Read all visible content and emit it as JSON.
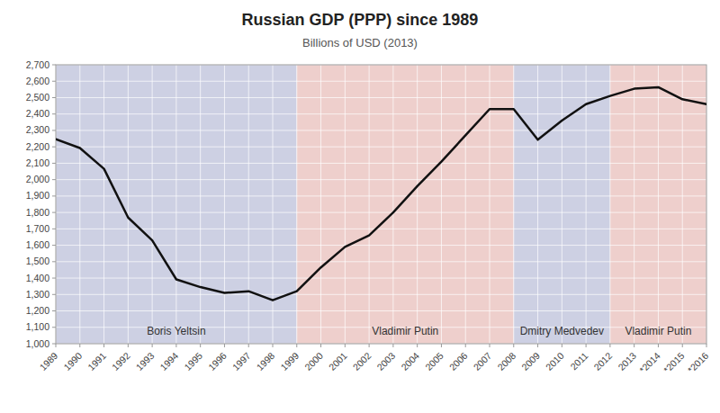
{
  "chart_data": {
    "type": "line",
    "title": "Russian GDP (PPP) since 1989",
    "subtitle": "Billions of USD (2013)",
    "x": [
      1989,
      1990,
      1991,
      1992,
      1993,
      1994,
      1995,
      1996,
      1997,
      1998,
      1999,
      2000,
      2001,
      2002,
      2003,
      2004,
      2005,
      2006,
      2007,
      2008,
      2009,
      2010,
      2011,
      2012,
      2013,
      2014,
      2015,
      2016
    ],
    "values": [
      2246,
      2193,
      2066,
      1769,
      1630,
      1392,
      1345,
      1310,
      1320,
      1265,
      1320,
      1465,
      1590,
      1660,
      1800,
      1960,
      2110,
      2270,
      2430,
      2430,
      2243,
      2360,
      2460,
      2510,
      2554,
      2563,
      2490,
      2460
    ],
    "color": "#111111",
    "xlim": [
      1989,
      2016
    ],
    "xticks": [
      1989,
      1990,
      1991,
      1992,
      1993,
      1994,
      1995,
      1996,
      1997,
      1998,
      1999,
      2000,
      2001,
      2002,
      2003,
      2004,
      2005,
      2006,
      2007,
      2008,
      2009,
      2010,
      2011,
      2012,
      2013,
      {
        "value": 2014,
        "label": "*2014"
      },
      {
        "value": 2015,
        "label": "*2015"
      },
      {
        "value": 2016,
        "label": "*2016"
      }
    ],
    "ylim": [
      1000,
      2700
    ],
    "yticks": [
      {
        "value": 1000,
        "label": "1,000"
      },
      {
        "value": 1100,
        "label": "1,100"
      },
      {
        "value": 1200,
        "label": "1,200"
      },
      {
        "value": 1300,
        "label": "1,300"
      },
      {
        "value": 1400,
        "label": "1,400"
      },
      {
        "value": 1500,
        "label": "1,500"
      },
      {
        "value": 1600,
        "label": "1,600"
      },
      {
        "value": 1700,
        "label": "1,700"
      },
      {
        "value": 1800,
        "label": "1,800"
      },
      {
        "value": 1900,
        "label": "1,900"
      },
      {
        "value": 2000,
        "label": "2,000"
      },
      {
        "value": 2100,
        "label": "2,100"
      },
      {
        "value": 2200,
        "label": "2,200"
      },
      {
        "value": 2300,
        "label": "2,300"
      },
      {
        "value": 2400,
        "label": "2,400"
      },
      {
        "value": 2500,
        "label": "2,500"
      },
      {
        "value": 2600,
        "label": "2,600"
      },
      {
        "value": 2700,
        "label": "2,700"
      }
    ],
    "grid": true,
    "eras": [
      {
        "label": "Boris Yeltsin",
        "x_start": 1989,
        "x_end": 1999,
        "color": "#cdd0e3"
      },
      {
        "label": "Vladimir Putin",
        "x_start": 1999,
        "x_end": 2008,
        "color": "#eecfcc"
      },
      {
        "label": "Dmitry Medvedev",
        "x_start": 2008,
        "x_end": 2012,
        "color": "#cdd0e3"
      },
      {
        "label": "Vladimir Putin",
        "x_start": 2012,
        "x_end": 2016,
        "color": "#eecfcc"
      }
    ]
  }
}
